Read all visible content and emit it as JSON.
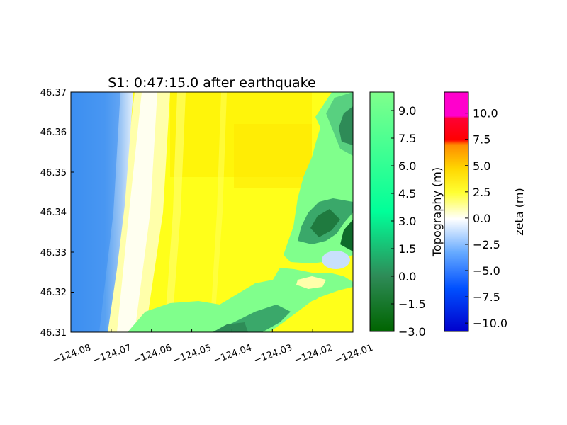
{
  "chart_data": {
    "type": "heatmap",
    "title": "S1: 0:47:15.0 after earthquake",
    "xlabel": "",
    "ylabel": "",
    "xlim": [
      -124.08,
      -124.01
    ],
    "ylim": [
      46.31,
      46.37
    ],
    "x_ticks": [
      "−124.08",
      "−124.07",
      "−124.06",
      "−124.05",
      "−124.04",
      "−124.03",
      "−124.02",
      "−124.01"
    ],
    "y_ticks": [
      "46.37",
      "46.36",
      "46.35",
      "46.34",
      "46.33",
      "46.32",
      "46.31"
    ],
    "grid": false,
    "fields": [
      {
        "name": "water-surface",
        "colormap": "zeta"
      },
      {
        "name": "land",
        "colormap": "topography"
      }
    ],
    "colorbars": [
      {
        "label": "Topography (m)",
        "range": [
          -3.0,
          10.0
        ],
        "ticks": [
          "9.0",
          "7.5",
          "6.0",
          "4.5",
          "3.0",
          "1.5",
          "0.0",
          "−1.5",
          "−3.0"
        ],
        "tick_values": [
          9.0,
          7.5,
          6.0,
          4.5,
          3.0,
          1.5,
          0.0,
          -1.5,
          -3.0
        ],
        "colors": [
          "#006400",
          "#2e8b57",
          "#00ff99",
          "#7fff7f"
        ]
      },
      {
        "label": "zeta (m)",
        "range": [
          -10.8,
          12.0
        ],
        "ticks": [
          "10.0",
          "7.5",
          "5.0",
          "2.5",
          "0.0",
          "−2.5",
          "−5.0",
          "−7.5",
          "−10.0"
        ],
        "tick_values": [
          10.0,
          7.5,
          5.0,
          2.5,
          0.0,
          -2.5,
          -5.0,
          -7.5,
          -10.0
        ],
        "colors": [
          "#0000cc",
          "#0066ff",
          "#66aaff",
          "#ffffff",
          "#ffff33",
          "#ffd700",
          "#ff8c00",
          "#ff4500",
          "#ff0000",
          "#ff00cc"
        ]
      }
    ]
  }
}
